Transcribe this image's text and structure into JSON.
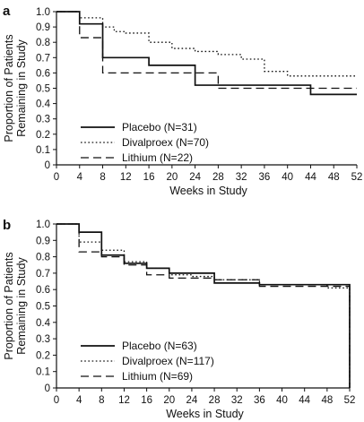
{
  "chart_data": [
    {
      "type": "line",
      "panel_label": "a",
      "xlabel": "Weeks in Study",
      "ylabel_lines": [
        "Proportion of Patients",
        "Remaining in Study"
      ],
      "xlim": [
        0,
        52
      ],
      "ylim": [
        0,
        1.0
      ],
      "xticks": [
        0,
        4,
        8,
        12,
        16,
        20,
        24,
        28,
        32,
        36,
        40,
        44,
        48,
        52
      ],
      "yticks": [
        "0",
        "0.1",
        "0.2",
        "0.3",
        "0.4",
        "0.5",
        "0.6",
        "0.7",
        "0.8",
        "0.9",
        "1.0"
      ],
      "grid": false,
      "legend_position": "bottom-left",
      "series": [
        {
          "name": "Placebo (N=31)",
          "style": "solid",
          "x": [
            0,
            4,
            8,
            12,
            16,
            24,
            28,
            44,
            52
          ],
          "y": [
            1.0,
            0.92,
            0.7,
            0.7,
            0.65,
            0.52,
            0.52,
            0.46,
            0.46
          ]
        },
        {
          "name": "Divalproex (N=70)",
          "style": "dotted",
          "x": [
            0,
            4,
            8,
            10,
            12,
            16,
            20,
            24,
            28,
            32,
            36,
            40,
            52
          ],
          "y": [
            1.0,
            0.96,
            0.9,
            0.87,
            0.86,
            0.8,
            0.76,
            0.74,
            0.72,
            0.69,
            0.61,
            0.58,
            0.58
          ]
        },
        {
          "name": "Lithium (N=22)",
          "style": "dashed",
          "x": [
            0,
            4,
            8,
            24,
            28,
            48,
            52
          ],
          "y": [
            1.0,
            0.83,
            0.6,
            0.6,
            0.5,
            0.5,
            0.5
          ]
        }
      ]
    },
    {
      "type": "line",
      "panel_label": "b",
      "xlabel": "Weeks in Study",
      "ylabel_lines": [
        "Proportion of Patients",
        "Remaining in Study"
      ],
      "xlim": [
        0,
        52
      ],
      "ylim": [
        0,
        1.0
      ],
      "xticks": [
        0,
        4,
        8,
        12,
        16,
        20,
        24,
        28,
        32,
        36,
        40,
        44,
        48,
        52
      ],
      "yticks": [
        "0",
        "0.1",
        "0.2",
        "0.3",
        "0.4",
        "0.5",
        "0.6",
        "0.7",
        "0.8",
        "0.9",
        "1.0"
      ],
      "grid": false,
      "legend_position": "bottom-left",
      "series": [
        {
          "name": "Placebo (N=63)",
          "style": "solid",
          "x": [
            0,
            4,
            8,
            12,
            16,
            20,
            24,
            28,
            36,
            52,
            52
          ],
          "y": [
            1.0,
            0.95,
            0.81,
            0.76,
            0.73,
            0.7,
            0.7,
            0.64,
            0.63,
            0.63,
            0.0
          ]
        },
        {
          "name": "Divalproex (N=117)",
          "style": "dotted",
          "x": [
            0,
            4,
            8,
            12,
            16,
            20,
            24,
            28,
            36,
            48,
            52,
            52
          ],
          "y": [
            1.0,
            0.89,
            0.84,
            0.77,
            0.73,
            0.69,
            0.68,
            0.66,
            0.63,
            0.61,
            0.61,
            0.0
          ]
        },
        {
          "name": "Lithium (N=69)",
          "style": "dashed",
          "x": [
            0,
            4,
            8,
            12,
            16,
            20,
            28,
            36,
            48,
            52,
            52
          ],
          "y": [
            1.0,
            0.83,
            0.8,
            0.75,
            0.69,
            0.67,
            0.66,
            0.62,
            0.62,
            0.62,
            0.0
          ]
        }
      ]
    }
  ]
}
